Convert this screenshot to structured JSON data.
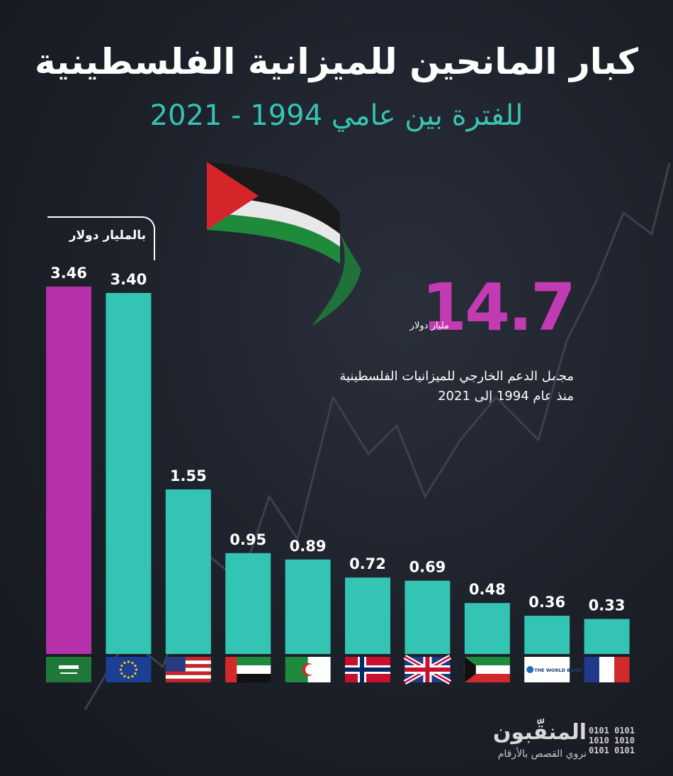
{
  "header": {
    "title": "كبار المانحين للميزانية الفلسطينية",
    "subtitle": "للفترة بين عامي 1994 - 2021"
  },
  "unit_label": "بالمليار دولار",
  "total": {
    "value": "14.7",
    "unit": "مليار دولار",
    "caption_line1": "مجمل الدعم الخارجي للميزانيات الفلسطينية",
    "caption_line2": "منذ عام 1994 إلى 2021"
  },
  "chart_data": {
    "type": "bar",
    "categories": [
      "Saudi Arabia",
      "European Union",
      "United States",
      "United Arab Emirates",
      "Algeria",
      "Norway",
      "United Kingdom",
      "Kuwait",
      "The World Bank",
      "France"
    ],
    "values": [
      3.46,
      3.4,
      1.55,
      0.95,
      0.89,
      0.72,
      0.69,
      0.48,
      0.36,
      0.33
    ],
    "value_labels": [
      "3.46",
      "3.40",
      "1.55",
      "0.95",
      "0.89",
      "0.72",
      "0.69",
      "0.48",
      "0.36",
      "0.33"
    ],
    "ylim": [
      0,
      3.46
    ],
    "highlight_index": 0,
    "colors": {
      "highlight": "#b62fab",
      "bar": "#33c4b3"
    },
    "flag_labels": {
      "world_bank": "THE WORLD BANK"
    }
  },
  "logo": {
    "name": "المنقّبون",
    "tagline": "نروي القصص بالأرقام",
    "binary": [
      "0101 0101",
      "1010 1010",
      "0101 0101"
    ]
  }
}
